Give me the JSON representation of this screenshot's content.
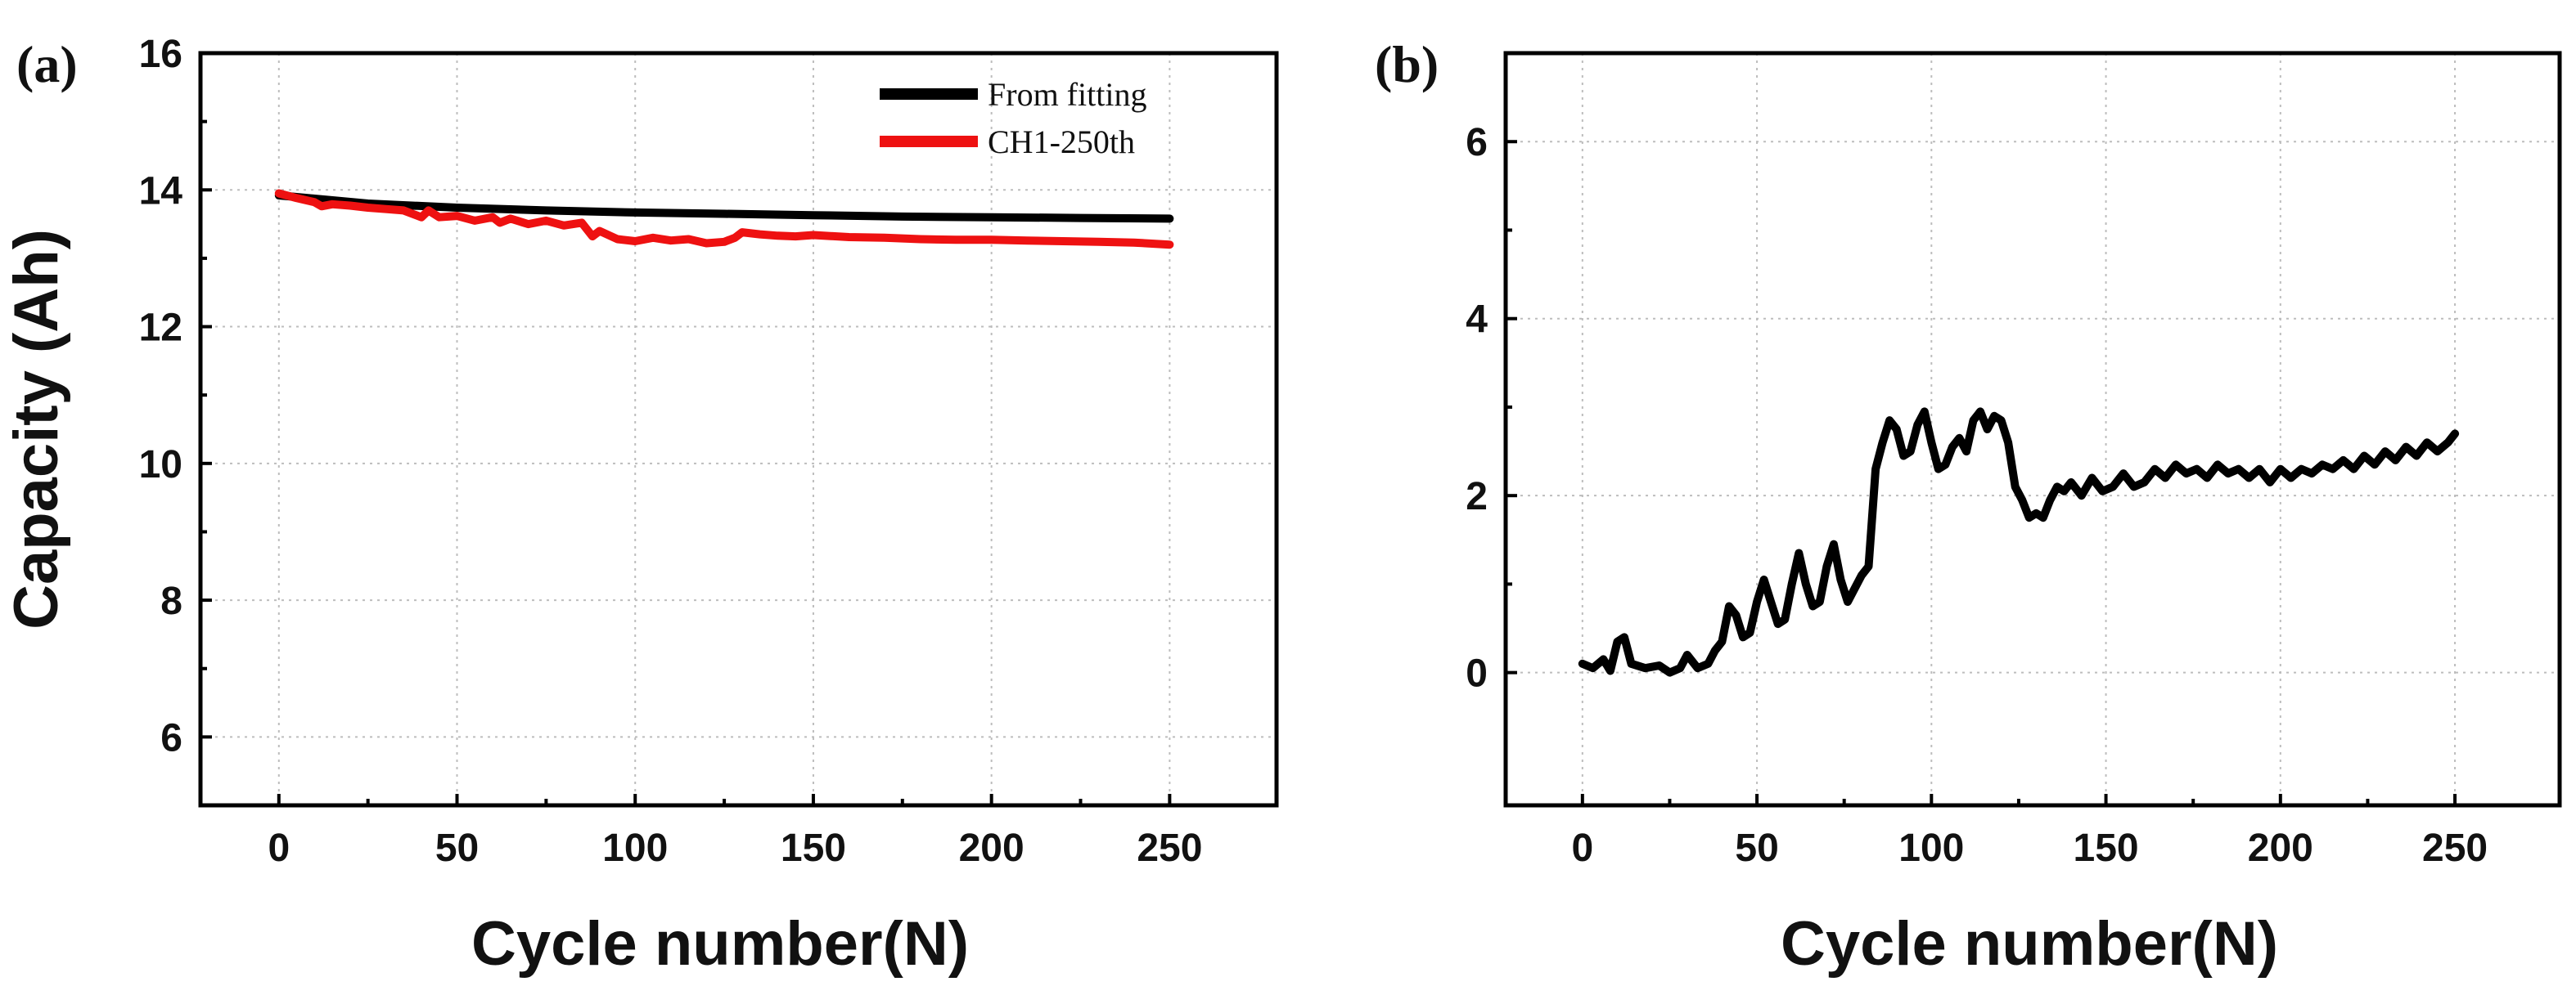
{
  "chart_data": [
    {
      "type": "line",
      "panel_label": "(a)",
      "xlabel": "Cycle number(N)",
      "ylabel": "Capacity (Ah)",
      "xlim": [
        -22,
        280
      ],
      "ylim": [
        5,
        16
      ],
      "xticks": [
        0,
        50,
        100,
        150,
        200,
        250
      ],
      "yticks": [
        6,
        8,
        10,
        12,
        14,
        16
      ],
      "grid": true,
      "legend_position": "top-right",
      "series": [
        {
          "name": "From fitting",
          "color": "#000000",
          "x": [
            0,
            25,
            50,
            75,
            100,
            125,
            150,
            175,
            200,
            225,
            250
          ],
          "y": [
            13.92,
            13.8,
            13.74,
            13.7,
            13.67,
            13.65,
            13.63,
            13.61,
            13.6,
            13.59,
            13.58
          ]
        },
        {
          "name": "CH1-250th",
          "color": "#ee1111",
          "x": [
            0,
            5,
            10,
            12,
            15,
            20,
            25,
            30,
            35,
            40,
            42,
            45,
            50,
            55,
            60,
            62,
            65,
            70,
            75,
            80,
            85,
            88,
            90,
            95,
            100,
            105,
            110,
            115,
            120,
            125,
            128,
            130,
            135,
            140,
            145,
            150,
            160,
            170,
            180,
            190,
            200,
            210,
            220,
            230,
            240,
            250
          ],
          "y": [
            13.95,
            13.88,
            13.82,
            13.76,
            13.79,
            13.77,
            13.74,
            13.72,
            13.7,
            13.6,
            13.7,
            13.6,
            13.62,
            13.55,
            13.6,
            13.52,
            13.58,
            13.5,
            13.55,
            13.48,
            13.52,
            13.32,
            13.4,
            13.28,
            13.25,
            13.3,
            13.26,
            13.28,
            13.22,
            13.24,
            13.3,
            13.38,
            13.35,
            13.33,
            13.32,
            13.34,
            13.31,
            13.3,
            13.28,
            13.27,
            13.27,
            13.26,
            13.25,
            13.24,
            13.23,
            13.2
          ]
        }
      ]
    },
    {
      "type": "line",
      "panel_label": "(b)",
      "xlabel": "Cycle number(N)",
      "ylabel": "",
      "xlim": [
        -22,
        280
      ],
      "ylim": [
        -1.5,
        7
      ],
      "xticks": [
        0,
        50,
        100,
        150,
        200,
        250
      ],
      "yticks": [
        0,
        2,
        4,
        6
      ],
      "grid": true,
      "series": [
        {
          "name": "",
          "color": "#000000",
          "x": [
            0,
            3,
            6,
            8,
            10,
            12,
            14,
            18,
            22,
            25,
            28,
            30,
            33,
            36,
            38,
            40,
            42,
            44,
            46,
            48,
            50,
            52,
            54,
            56,
            58,
            60,
            62,
            64,
            66,
            68,
            70,
            72,
            74,
            76,
            78,
            80,
            82,
            84,
            86,
            88,
            90,
            92,
            94,
            96,
            98,
            100,
            102,
            104,
            106,
            108,
            110,
            112,
            114,
            116,
            118,
            120,
            122,
            124,
            126,
            128,
            130,
            132,
            134,
            136,
            138,
            140,
            143,
            146,
            149,
            152,
            155,
            158,
            161,
            164,
            167,
            170,
            173,
            176,
            179,
            182,
            185,
            188,
            191,
            194,
            197,
            200,
            203,
            206,
            209,
            212,
            215,
            218,
            221,
            224,
            227,
            230,
            233,
            236,
            239,
            242,
            245,
            248,
            250
          ],
          "y": [
            0.1,
            0.05,
            0.15,
            0.02,
            0.35,
            0.4,
            0.1,
            0.05,
            0.08,
            0.0,
            0.05,
            0.2,
            0.05,
            0.1,
            0.25,
            0.35,
            0.75,
            0.65,
            0.4,
            0.45,
            0.8,
            1.05,
            0.8,
            0.55,
            0.6,
            1.0,
            1.35,
            1.0,
            0.75,
            0.8,
            1.2,
            1.45,
            1.05,
            0.8,
            0.95,
            1.1,
            1.2,
            2.3,
            2.6,
            2.85,
            2.75,
            2.45,
            2.5,
            2.8,
            2.95,
            2.6,
            2.3,
            2.35,
            2.55,
            2.65,
            2.5,
            2.85,
            2.95,
            2.75,
            2.9,
            2.85,
            2.6,
            2.1,
            1.95,
            1.75,
            1.8,
            1.75,
            1.95,
            2.1,
            2.05,
            2.15,
            2.0,
            2.2,
            2.05,
            2.1,
            2.25,
            2.1,
            2.15,
            2.3,
            2.2,
            2.35,
            2.25,
            2.3,
            2.2,
            2.35,
            2.25,
            2.3,
            2.2,
            2.3,
            2.15,
            2.3,
            2.2,
            2.3,
            2.25,
            2.35,
            2.3,
            2.4,
            2.3,
            2.45,
            2.35,
            2.5,
            2.4,
            2.55,
            2.45,
            2.6,
            2.5,
            2.6,
            2.7
          ]
        }
      ]
    }
  ]
}
